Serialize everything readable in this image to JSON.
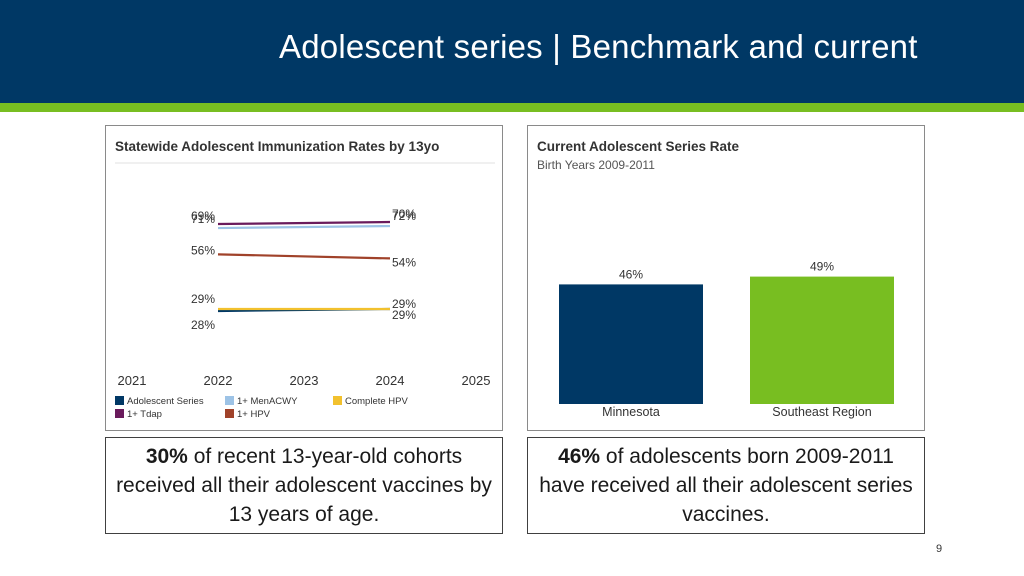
{
  "slide": {
    "title": "Adolescent series | Benchmark and current",
    "page_number": "9"
  },
  "colors": {
    "header_bg": "#003865",
    "header_stripe": "#78be21"
  },
  "chart_data": [
    {
      "type": "line",
      "title": "Statewide Adolescent Immunization Rates by 13yo",
      "x_ticks": [
        "2021",
        "2022",
        "2023",
        "2024",
        "2025"
      ],
      "x": [
        2022,
        2024
      ],
      "xlim": [
        2021,
        2025
      ],
      "grid": false,
      "legend_position": "bottom",
      "series": [
        {
          "name": "Adolescent Series",
          "color": "#003865",
          "values": [
            28,
            29
          ],
          "labels": [
            "28%",
            "29%"
          ]
        },
        {
          "name": "1+ MenACWY",
          "color": "#9dc3e6",
          "values": [
            69,
            70
          ],
          "labels": [
            "69%",
            "70%"
          ]
        },
        {
          "name": "Complete HPV",
          "color": "#f2c12e",
          "values": [
            29,
            29
          ],
          "labels": [
            "29%",
            "29%"
          ]
        },
        {
          "name": "1+ Tdap",
          "color": "#6a1b5c",
          "values": [
            71,
            72
          ],
          "labels": [
            "71%",
            "72%"
          ]
        },
        {
          "name": "1+ HPV",
          "color": "#a0422a",
          "values": [
            56,
            54
          ],
          "labels": [
            "56%",
            "54%"
          ]
        }
      ]
    },
    {
      "type": "bar",
      "title": "Current Adolescent Series Rate",
      "subtitle": "Birth Years 2009-2011",
      "categories": [
        "Minnesota",
        "Southeast Region"
      ],
      "values": [
        46,
        49
      ],
      "labels": [
        "46%",
        "49%"
      ],
      "colors": [
        "#003865",
        "#78be21"
      ],
      "ylim": [
        0,
        100
      ]
    }
  ],
  "captions": {
    "left": {
      "bold": "30%",
      "text": " of recent 13-year-old cohorts received all their adolescent vaccines by 13 years of age."
    },
    "right": {
      "bold": "46%",
      "text": " of adolescents born 2009-2011 have received all their adolescent series vaccines."
    }
  }
}
